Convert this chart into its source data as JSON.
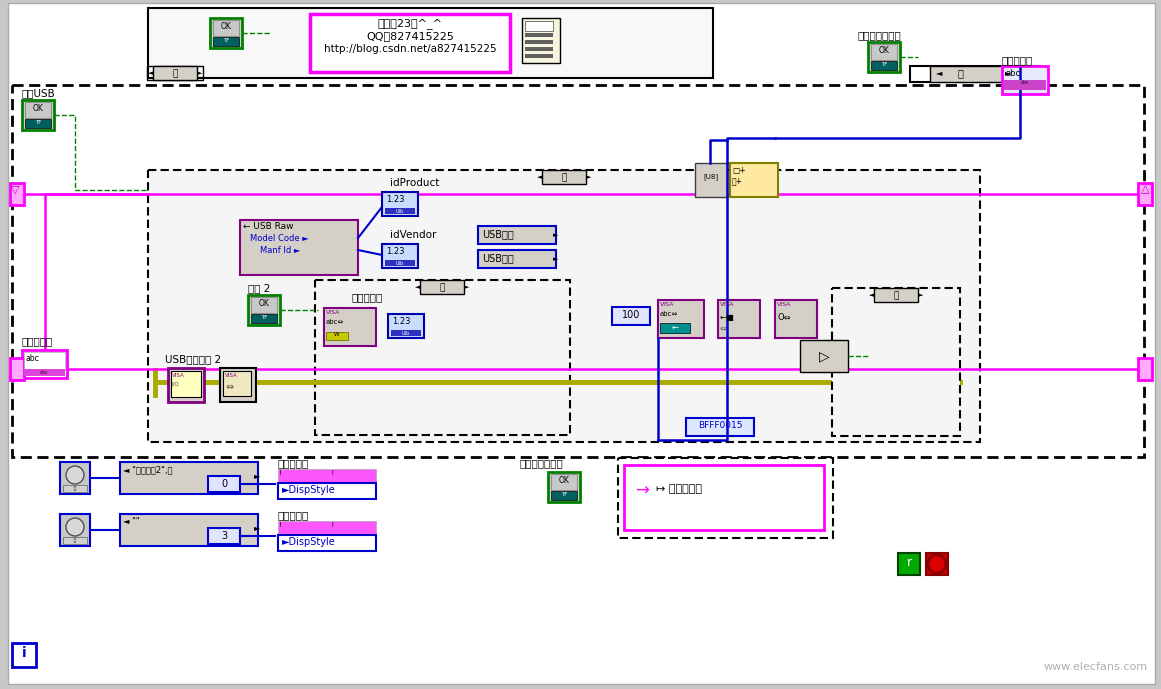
{
  "bg_color": "#c8c8c8",
  "canvas_color": "#ffffff",
  "pink": "#ff00ff",
  "blue": "#0000cd",
  "green": "#008000",
  "yellow": "#aaaa00",
  "purple": "#800080",
  "darkblue": "#0000cc",
  "gray": "#d4d0c8",
  "annotation_text_1": "毛毛虢23号^_^",
  "annotation_text_2": "QQ：827415225",
  "annotation_text_3": "http://blog.csdn.net/a827415225",
  "watermark": "www.elecfans.com",
  "watermark_color": "#b0b0b0",
  "label_open_usb": "打开USB",
  "label_send_buf": "发送缓冲区",
  "label_clear_recv": "清空接收缓冲区",
  "label_recv_buf": "接收缓冲区",
  "label_id_product": "idProduct",
  "label_id_vendor": "idVendor",
  "label_usb_raw": "← USB Raw",
  "label_model_code": "Model Code ►",
  "label_manf_id": "Manf Id ►",
  "label_usb_intr1": "USB中断",
  "label_usb_intr2": "USB中断",
  "label_send2": "发送 2",
  "label_send_bytes": "发送字节数",
  "label_usb_res": "USB资源名称 2",
  "label_bfff": "BFFF0015",
  "label_enum1": "\"单选选项2\",默",
  "label_enum2": "\"\"",
  "label_send_buf2": "发送缓冲区",
  "label_recv_buf2": "接收缓冲区",
  "label_clear_send": "清空发送缓冲区",
  "label_disp_style": "►DispStyle",
  "label_true": "真",
  "label_false": "假",
  "label_100": "100",
  "label_0": "0",
  "label_3": "3"
}
